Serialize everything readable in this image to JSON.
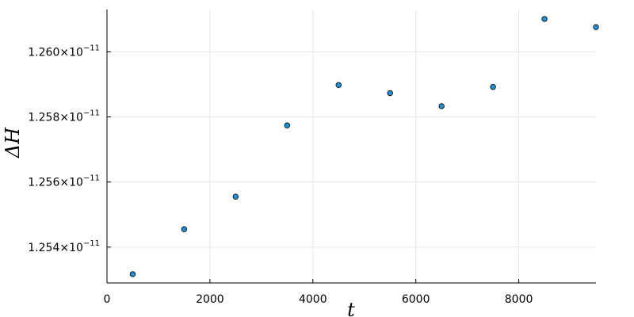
{
  "chart_data": {
    "type": "scatter",
    "title": "",
    "xlabel": "t",
    "ylabel": "ΔH",
    "xlim": [
      0,
      9500
    ],
    "ylim": [
      1.2529e-11,
      1.2613e-11
    ],
    "grid": true,
    "legend": "none",
    "marker_color": "#1f8fd6",
    "x_ticks": [
      {
        "value": 0,
        "label": "0"
      },
      {
        "value": 2000,
        "label": "2000"
      },
      {
        "value": 4000,
        "label": "4000"
      },
      {
        "value": 6000,
        "label": "6000"
      },
      {
        "value": 8000,
        "label": "8000"
      }
    ],
    "y_ticks": [
      {
        "value": 1.254e-11,
        "mantissa": "1.254",
        "exponent": "−11"
      },
      {
        "value": 1.256e-11,
        "mantissa": "1.256",
        "exponent": "−11"
      },
      {
        "value": 1.258e-11,
        "mantissa": "1.258",
        "exponent": "−11"
      },
      {
        "value": 1.26e-11,
        "mantissa": "1.260",
        "exponent": "−11"
      }
    ],
    "series": [
      {
        "x": [
          500,
          1500,
          2500,
          3500,
          4500,
          5500,
          6500,
          7500,
          8500,
          9500
        ],
        "y": [
          1.25317e-11,
          1.25455e-11,
          1.25555e-11,
          1.25774e-11,
          1.25898e-11,
          1.25873e-11,
          1.25833e-11,
          1.25892e-11,
          1.26101e-11,
          1.26076e-11
        ]
      }
    ]
  }
}
